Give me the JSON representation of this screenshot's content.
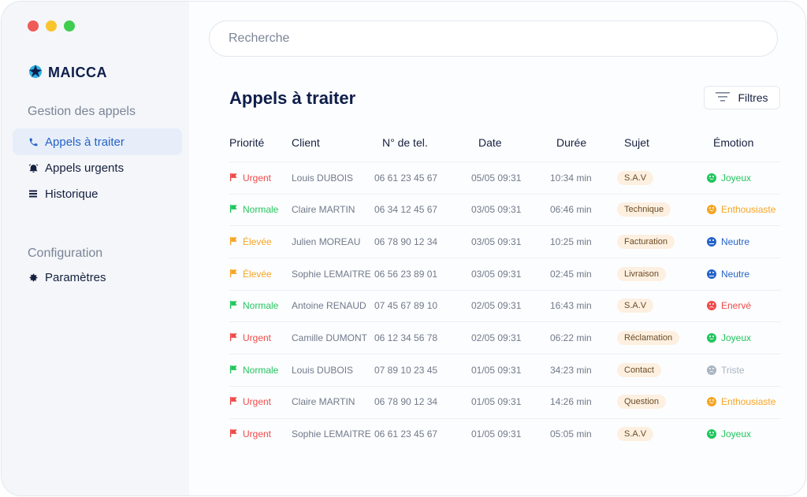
{
  "brand": {
    "name": "MAICCA"
  },
  "sidebar": {
    "sections": [
      {
        "title": "Gestion des appels"
      },
      {
        "title": "Configuration"
      }
    ],
    "items": [
      {
        "label": "Appels à traiter",
        "icon": "phone-icon"
      },
      {
        "label": "Appels urgents",
        "icon": "alarm-icon"
      },
      {
        "label": "Historique",
        "icon": "list-icon"
      },
      {
        "label": "Paramètres",
        "icon": "gear-icon"
      }
    ]
  },
  "search": {
    "placeholder": "Recherche"
  },
  "main": {
    "title": "Appels à traiter",
    "filters_label": "Filtres"
  },
  "table": {
    "columns": [
      "Priorité",
      "Client",
      "N° de tel.",
      "Date",
      "Durée",
      "Sujet",
      "Émotion"
    ],
    "rows": [
      {
        "priority": "Urgent",
        "client": "Louis DUBOIS",
        "phone": "06 61 23 45 67",
        "date": "05/05 09:31",
        "duration": "10:34 min",
        "subject": "S.A.V",
        "emotion": "Joyeux"
      },
      {
        "priority": "Normale",
        "client": "Claire MARTIN",
        "phone": "06 34 12 45 67",
        "date": "03/05 09:31",
        "duration": "06:46 min",
        "subject": "Technique",
        "emotion": "Enthousiaste"
      },
      {
        "priority": "Élevée",
        "client": "Julien MOREAU",
        "phone": "06 78 90 12 34",
        "date": "03/05 09:31",
        "duration": "10:25 min",
        "subject": "Facturation",
        "emotion": "Neutre"
      },
      {
        "priority": "Élevée",
        "client": "Sophie LEMAITRE",
        "phone": "06 56 23 89 01",
        "date": "03/05 09:31",
        "duration": "02:45 min",
        "subject": "Livraison",
        "emotion": "Neutre"
      },
      {
        "priority": "Normale",
        "client": "Antoine RENAUD",
        "phone": "07 45 67 89 10",
        "date": "02/05 09:31",
        "duration": "16:43 min",
        "subject": "S.A.V",
        "emotion": "Enervé"
      },
      {
        "priority": "Urgent",
        "client": "Camille DUMONT",
        "phone": "06 12 34 56 78",
        "date": "02/05 09:31",
        "duration": "06:22 min",
        "subject": "Réclamation",
        "emotion": "Joyeux"
      },
      {
        "priority": "Normale",
        "client": "Louis DUBOIS",
        "phone": "07 89 10 23 45",
        "date": "01/05 09:31",
        "duration": "34:23 min",
        "subject": "Contact",
        "emotion": "Triste"
      },
      {
        "priority": "Urgent",
        "client": "Claire MARTIN",
        "phone": "06 78 90 12 34",
        "date": "01/05 09:31",
        "duration": "14:26 min",
        "subject": "Question",
        "emotion": "Enthousiaste"
      },
      {
        "priority": "Urgent",
        "client": "Sophie LEMAITRE",
        "phone": "06 61 23 45 67",
        "date": "01/05 09:31",
        "duration": "05:05 min",
        "subject": "S.A.V",
        "emotion": "Joyeux"
      }
    ]
  },
  "colors": {
    "accent": "#2563c7",
    "priority": {
      "Urgent": "#ef4a4a",
      "Normale": "#22c55e",
      "Élevée": "#f5a524"
    },
    "emotion": {
      "Joyeux": "#22c55e",
      "Enthousiaste": "#f5a524",
      "Neutre": "#2563c7",
      "Enervé": "#ef4a4a",
      "Triste": "#a9b4c2"
    }
  }
}
